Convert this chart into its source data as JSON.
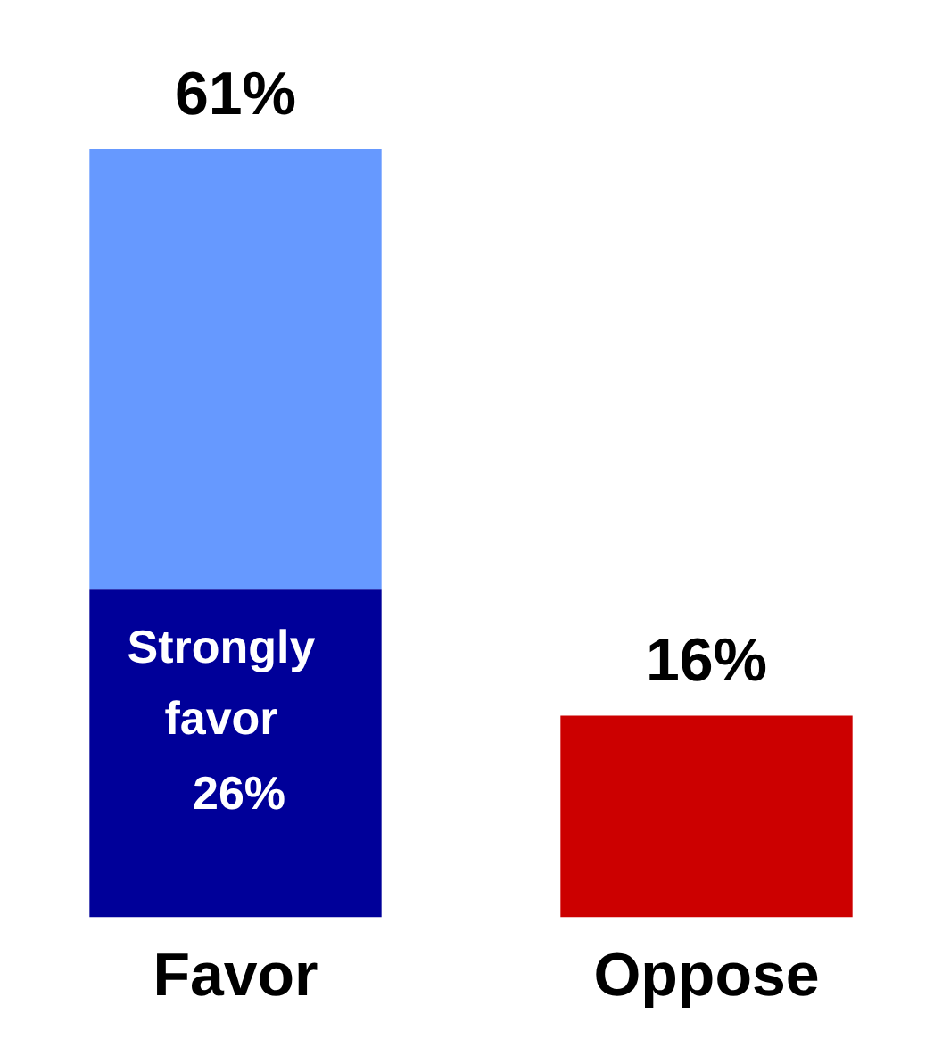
{
  "chart_data": {
    "type": "bar",
    "stacked": true,
    "categories": [
      "Favor",
      "Oppose"
    ],
    "legend": false,
    "grid": false,
    "series": [
      {
        "name": "Strongly favor",
        "color": "#000099",
        "values": [
          26,
          null
        ],
        "value_labels": [
          "26%",
          null
        ]
      },
      {
        "color": "#6699ff",
        "values": [
          35,
          null
        ]
      },
      {
        "color": "#cc0000",
        "values": [
          null,
          16
        ]
      }
    ],
    "totals": [
      "61%",
      "16%"
    ]
  }
}
